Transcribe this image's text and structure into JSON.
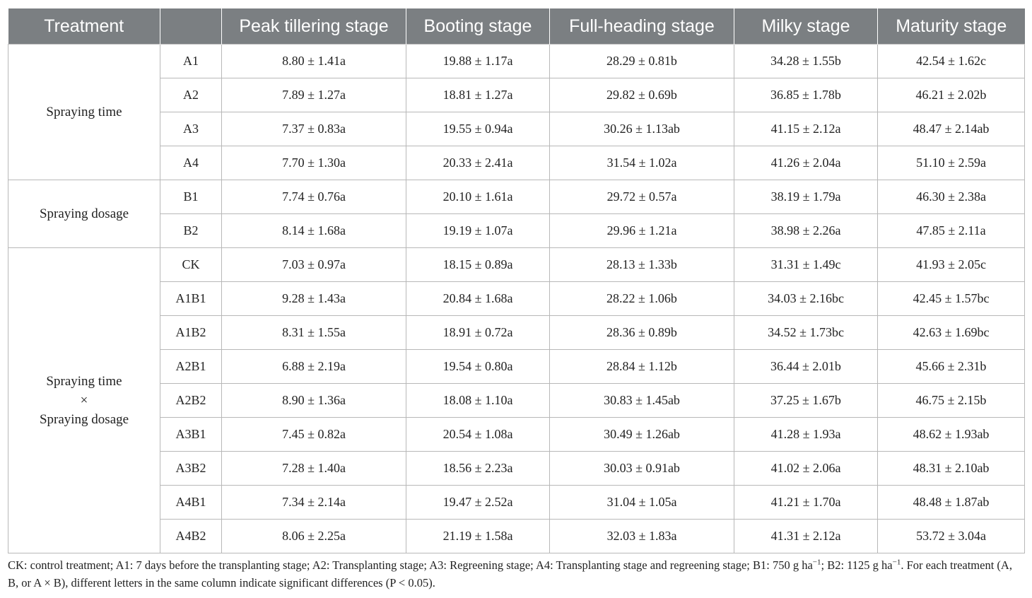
{
  "headers": [
    "Treatment",
    "",
    "Peak tillering stage",
    "Booting stage",
    "Full-heading stage",
    "Milky stage",
    "Maturity stage"
  ],
  "groups": [
    {
      "label_lines": [
        "Spraying time"
      ],
      "rows": [
        {
          "id": "A1",
          "values": [
            "8.80 ± 1.41a",
            "19.88 ± 1.17a",
            "28.29 ± 0.81b",
            "34.28 ± 1.55b",
            "42.54 ± 1.62c"
          ]
        },
        {
          "id": "A2",
          "values": [
            "7.89 ± 1.27a",
            "18.81 ± 1.27a",
            "29.82 ± 0.69b",
            "36.85 ± 1.78b",
            "46.21 ± 2.02b"
          ]
        },
        {
          "id": "A3",
          "values": [
            "7.37 ± 0.83a",
            "19.55 ± 0.94a",
            "30.26 ± 1.13ab",
            "41.15 ± 2.12a",
            "48.47 ± 2.14ab"
          ]
        },
        {
          "id": "A4",
          "values": [
            "7.70 ± 1.30a",
            "20.33 ± 2.41a",
            "31.54 ± 1.02a",
            "41.26 ± 2.04a",
            "51.10 ± 2.59a"
          ]
        }
      ]
    },
    {
      "label_lines": [
        "Spraying dosage"
      ],
      "rows": [
        {
          "id": "B1",
          "values": [
            "7.74 ± 0.76a",
            "20.10 ± 1.61a",
            "29.72 ± 0.57a",
            "38.19 ± 1.79a",
            "46.30 ± 2.38a"
          ]
        },
        {
          "id": "B2",
          "values": [
            "8.14 ± 1.68a",
            "19.19 ± 1.07a",
            "29.96 ± 1.21a",
            "38.98 ± 2.26a",
            "47.85 ± 2.11a"
          ]
        }
      ]
    },
    {
      "label_lines": [
        "Spraying time",
        "×",
        "Spraying dosage"
      ],
      "rows": [
        {
          "id": "CK",
          "values": [
            "7.03 ± 0.97a",
            "18.15 ± 0.89a",
            "28.13 ± 1.33b",
            "31.31 ± 1.49c",
            "41.93 ± 2.05c"
          ]
        },
        {
          "id": "A1B1",
          "values": [
            "9.28 ± 1.43a",
            "20.84 ± 1.68a",
            "28.22 ± 1.06b",
            "34.03 ± 2.16bc",
            "42.45 ± 1.57bc"
          ]
        },
        {
          "id": "A1B2",
          "values": [
            "8.31 ± 1.55a",
            "18.91 ± 0.72a",
            "28.36 ± 0.89b",
            "34.52 ± 1.73bc",
            "42.63 ± 1.69bc"
          ]
        },
        {
          "id": "A2B1",
          "values": [
            "6.88 ± 2.19a",
            "19.54 ± 0.80a",
            "28.84 ± 1.12b",
            "36.44 ± 2.01b",
            "45.66 ± 2.31b"
          ]
        },
        {
          "id": "A2B2",
          "values": [
            "8.90 ± 1.36a",
            "18.08 ± 1.10a",
            "30.83 ± 1.45ab",
            "37.25 ± 1.67b",
            "46.75 ± 2.15b"
          ]
        },
        {
          "id": "A3B1",
          "values": [
            "7.45 ± 0.82a",
            "20.54 ± 1.08a",
            "30.49 ± 1.26ab",
            "41.28 ± 1.93a",
            "48.62 ± 1.93ab"
          ]
        },
        {
          "id": "A3B2",
          "values": [
            "7.28 ± 1.40a",
            "18.56 ± 2.23a",
            "30.03 ± 0.91ab",
            "41.02 ± 2.06a",
            "48.31 ± 2.10ab"
          ]
        },
        {
          "id": "A4B1",
          "values": [
            "7.34 ± 2.14a",
            "19.47 ± 2.52a",
            "31.04 ± 1.05a",
            "41.21 ± 1.70a",
            "48.48 ± 1.87ab"
          ]
        },
        {
          "id": "A4B2",
          "values": [
            "8.06 ± 2.25a",
            "21.19 ± 1.58a",
            "32.03 ± 1.83a",
            "41.31 ± 2.12a",
            "53.72 ± 3.04a"
          ]
        }
      ]
    }
  ],
  "footnote": {
    "part1": "CK: control treatment; A1: 7 days before the transplanting stage; A2: Transplanting stage; A3: Regreening stage; A4: Transplanting stage and regreening stage; B1: 750 g ha",
    "sup1": "−1",
    "part2": "; B2: 1125 g ha",
    "sup2": "−1",
    "part3": ". For each treatment (A, B, or A × B), different letters in the same column indicate significant differences (P < 0.05)."
  }
}
